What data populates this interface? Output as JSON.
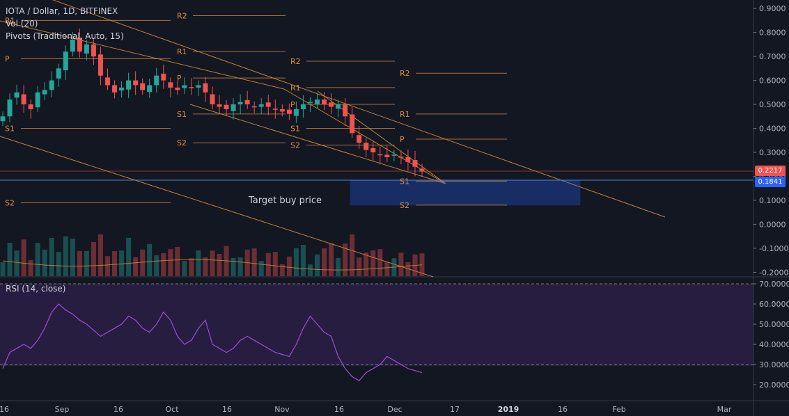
{
  "header": {
    "symbol_line": "IOTA / Dollar, 1D, BITFINEX",
    "vol_indicator": "Vol (20)",
    "pivots_indicator": "Pivots (Traditional, Auto, 15)",
    "rsi_indicator": "RSI (14, close)"
  },
  "annotation": "Target buy price",
  "last_price": {
    "value": "0.2217",
    "color": "#ef5350"
  },
  "target_price": {
    "value": "0.1841",
    "color": "#2962ff"
  },
  "colors": {
    "up": "#26a69a",
    "down": "#ef5350",
    "pivot": "#e08a3a",
    "trend": "#d38b3b",
    "rsi": "#9c4fd6",
    "zone": "#2962ff"
  },
  "chart_data": {
    "type": "candlestick",
    "title": "IOTA / Dollar, 1D, BITFINEX",
    "price_axis": {
      "range": [
        -0.22,
        0.93
      ],
      "ticks": [
        "0.9000",
        "0.8000",
        "0.7000",
        "0.6000",
        "0.5000",
        "0.4000",
        "0.3000",
        "0.2000",
        "0.1000",
        "0.0000",
        "-0.1000",
        "-0.2000"
      ]
    },
    "rsi_axis": {
      "range": [
        15,
        72
      ],
      "ticks": [
        "70.0000",
        "60.0000",
        "50.0000",
        "40.0000",
        "30.0000",
        "20.0000"
      ],
      "levels": [
        70,
        30
      ]
    },
    "x_axis": {
      "labels": [
        "16",
        "Sep",
        "16",
        "Oct",
        "16",
        "Nov",
        "16",
        "Dec",
        "17",
        "2019",
        "16",
        "Feb",
        "Mar"
      ]
    },
    "pivot_labels": [
      "R2",
      "R1",
      "P",
      "S1",
      "S2"
    ],
    "price_series": [
      0.45,
      0.52,
      0.55,
      0.5,
      0.48,
      0.55,
      0.56,
      0.6,
      0.65,
      0.72,
      0.77,
      0.72,
      0.75,
      0.7,
      0.62,
      0.58,
      0.55,
      0.57,
      0.6,
      0.58,
      0.56,
      0.58,
      0.62,
      0.6,
      0.57,
      0.56,
      0.58,
      0.57,
      0.58,
      0.55,
      0.5,
      0.49,
      0.48,
      0.5,
      0.51,
      0.5,
      0.49,
      0.5,
      0.49,
      0.48,
      0.47,
      0.46,
      0.48,
      0.5,
      0.51,
      0.52,
      0.5,
      0.49,
      0.5,
      0.45,
      0.38,
      0.34,
      0.31,
      0.3,
      0.29,
      0.28,
      0.29,
      0.28,
      0.26,
      0.24,
      0.22
    ],
    "rsi_series": [
      28,
      36,
      38,
      40,
      38,
      42,
      48,
      56,
      60,
      57,
      55,
      52,
      50,
      47,
      44,
      46,
      48,
      50,
      54,
      52,
      48,
      46,
      50,
      56,
      52,
      44,
      40,
      42,
      48,
      52,
      40,
      38,
      36,
      38,
      42,
      44,
      42,
      40,
      38,
      36,
      35,
      34,
      40,
      48,
      54,
      50,
      46,
      44,
      34,
      28,
      24,
      22,
      26,
      28,
      30,
      34,
      32,
      30,
      28,
      27,
      26
    ]
  }
}
